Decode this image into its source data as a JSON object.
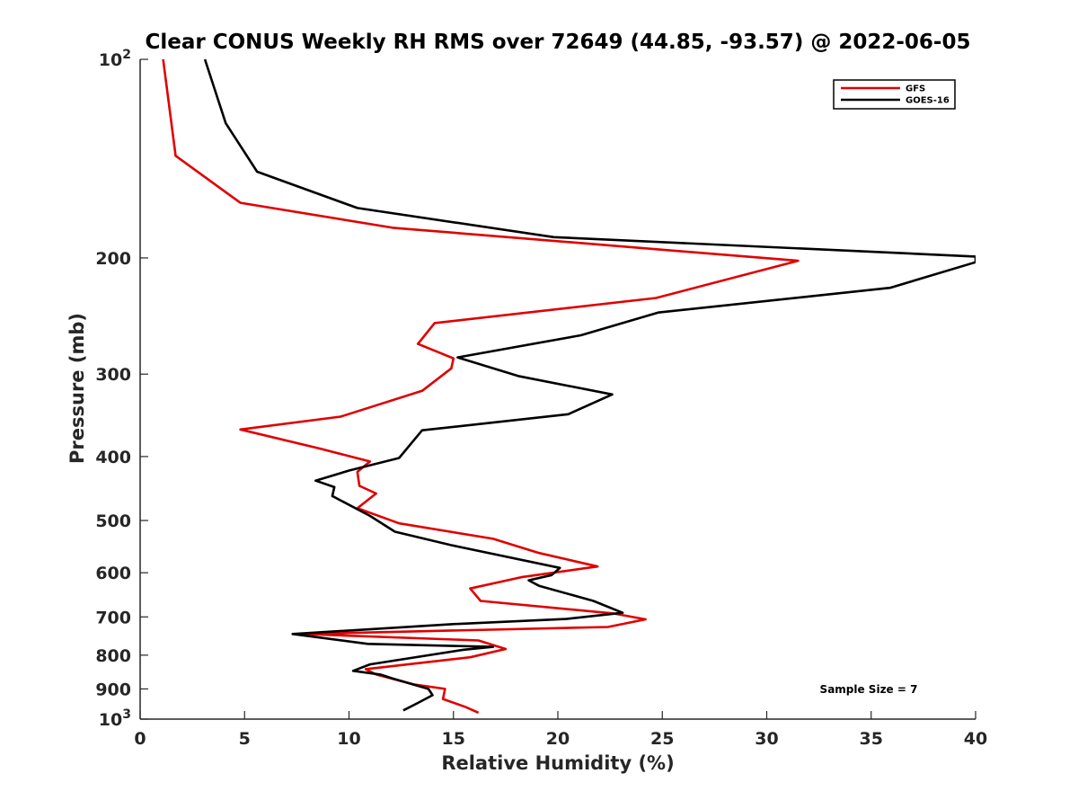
{
  "chart_data": {
    "type": "line",
    "title": "Clear CONUS Weekly RH RMS over 72649 (44.85, -93.57) @ 2022-06-05",
    "xlabel": "Relative Humidity (%)",
    "ylabel": "Pressure (mb)",
    "xlim": [
      0,
      40
    ],
    "ylim": [
      100,
      1000
    ],
    "y_scale": "log",
    "y_reversed": true,
    "grid": false,
    "legend_position": "top-right",
    "x_ticks": [
      0,
      5,
      10,
      15,
      20,
      25,
      30,
      35,
      40
    ],
    "x_tick_labels": [
      "0",
      "5",
      "10",
      "15",
      "20",
      "25",
      "30",
      "35",
      "40"
    ],
    "y_ticks": [
      100,
      200,
      300,
      400,
      500,
      600,
      700,
      800,
      900,
      1000
    ],
    "y_tick_labels": [
      {
        "base": "10",
        "exp": "2"
      },
      {
        "base": "200"
      },
      {
        "base": "300"
      },
      {
        "base": "400"
      },
      {
        "base": "500"
      },
      {
        "base": "600"
      },
      {
        "base": "700"
      },
      {
        "base": "800"
      },
      {
        "base": "900"
      },
      {
        "base": "10",
        "exp": "3"
      }
    ],
    "annotations": [
      {
        "text": "Sample Size = 7"
      }
    ],
    "series": [
      {
        "name": "GFS",
        "color": "#e00000",
        "x": [
          1.1,
          1.7,
          4.8,
          12.1,
          31.5,
          24.7,
          14.1,
          13.3,
          15.0,
          14.9,
          13.5,
          9.6,
          4.8,
          8.6,
          11.0,
          10.4,
          10.5,
          11.3,
          10.4,
          12.4,
          16.9,
          19.1,
          21.9,
          18.3,
          15.8,
          16.3,
          22.7,
          24.2,
          22.4,
          7.8,
          16.2,
          17.5,
          15.8,
          10.8,
          11.3,
          12.1,
          13.1,
          14.6,
          14.5,
          15.6,
          16.2
        ],
        "y": [
          100,
          140,
          165,
          180,
          202,
          230,
          251,
          270,
          284,
          294,
          318,
          348,
          364,
          389,
          407,
          422,
          443,
          455,
          479,
          505,
          533,
          560,
          587,
          609,
          634,
          662,
          692,
          706,
          725,
          743,
          760,
          783,
          806,
          840,
          856,
          869,
          886,
          900,
          932,
          959,
          978
        ]
      },
      {
        "name": "GOES-16",
        "color": "#000000",
        "x": [
          3.1,
          4.1,
          5.6,
          10.4,
          19.8,
          40.0,
          40.0,
          35.9,
          24.8,
          21.1,
          15.2,
          18.1,
          22.6,
          20.5,
          13.5,
          12.4,
          10.0,
          8.4,
          9.3,
          9.2,
          11.0,
          12.2,
          14.9,
          20.1,
          19.7,
          18.6,
          19.1,
          21.7,
          23.1,
          20.4,
          14.9,
          7.3,
          10.9,
          16.9,
          15.5,
          11.0,
          10.2,
          11.5,
          12.1,
          13.8,
          14.0,
          13.3,
          12.6
        ]
      }
    ]
  },
  "legend": {
    "entries": [
      {
        "name": "GFS",
        "color": "#e00000"
      },
      {
        "name": "GOES-16",
        "color": "#000000"
      }
    ]
  }
}
